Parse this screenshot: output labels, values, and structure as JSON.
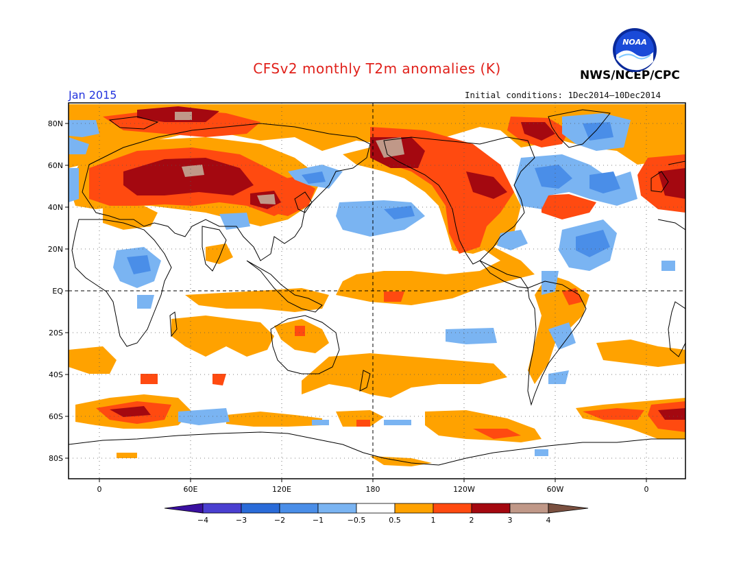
{
  "header": {
    "title": "CFSv2 monthly T2m anomalies (K)",
    "agency": "NWS/NCEP/CPC",
    "month": "Jan 2015",
    "initial_conditions": "Initial conditions: 1Dec2014–10Dec2014",
    "logo_text": "NOAA"
  },
  "map": {
    "lat_labels": [
      "80N",
      "60N",
      "40N",
      "20N",
      "EQ",
      "20S",
      "40S",
      "60S",
      "80S"
    ],
    "lon_labels": [
      "0",
      "60E",
      "120E",
      "180",
      "120W",
      "60W",
      "0"
    ]
  },
  "colorbar": {
    "labels": [
      "−4",
      "−3",
      "−2",
      "−1",
      "−0.5",
      "0.5",
      "1",
      "2",
      "3",
      "4"
    ],
    "colors": [
      "#3a10a0",
      "#4a3fd0",
      "#2a6bd8",
      "#4a8ee8",
      "#7ab4f2",
      "#ffffff",
      "#ffa200",
      "#ff4a10",
      "#a40810",
      "#c09888",
      "#7a5040"
    ]
  }
}
